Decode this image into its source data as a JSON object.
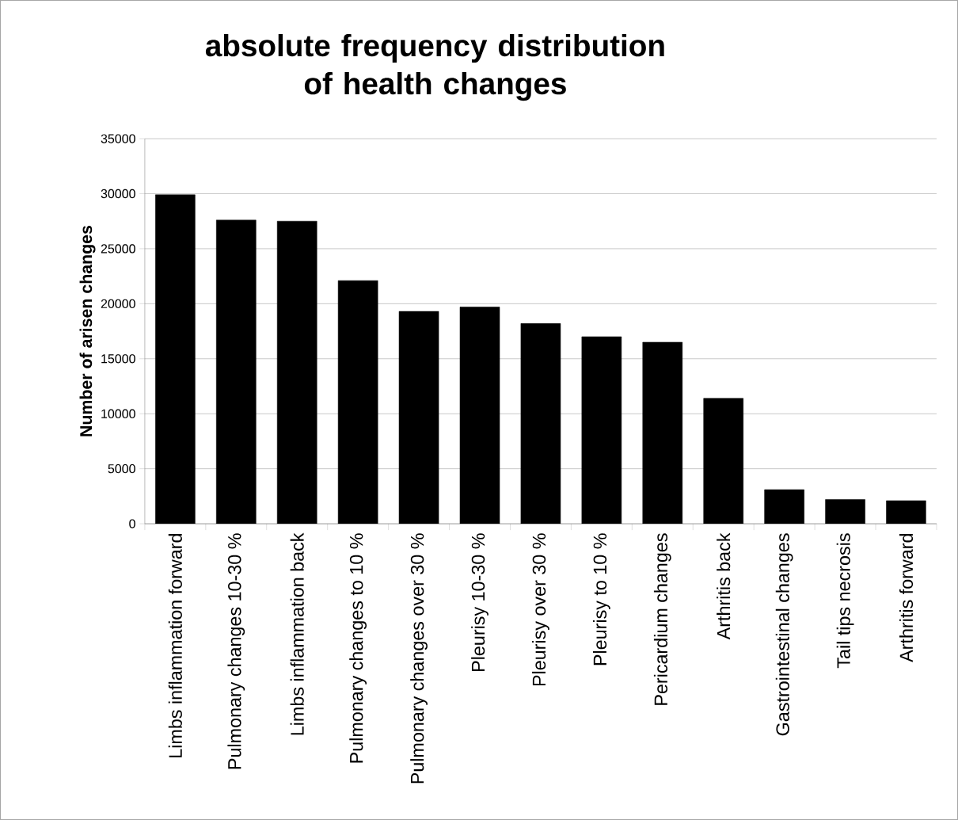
{
  "chart_data": {
    "type": "bar",
    "title": "absolute frequency distribution\nof health changes",
    "ylabel": "Number of arisen changes",
    "categories": [
      "Limbs inflammation forward",
      "Pulmonary changes 10-30 %",
      "Limbs inflammation back",
      "Pulmonary changes to 10 %",
      "Pulmonary changes over 30 %",
      "Pleurisy 10-30 %",
      "Pleurisy over 30 %",
      "Pleurisy to 10 %",
      "Pericardium changes",
      "Arthritis back",
      "Gastrointestinal changes",
      "Tail tips necrosis",
      "Arthritis forward"
    ],
    "values": [
      29900,
      27600,
      27500,
      22100,
      19300,
      19700,
      18200,
      17000,
      16500,
      11400,
      3100,
      2200,
      2100
    ],
    "color": "#000000",
    "ylim": [
      0,
      35000
    ],
    "yticks": [
      0,
      5000,
      10000,
      15000,
      20000,
      25000,
      30000,
      35000
    ],
    "grid": "y"
  }
}
